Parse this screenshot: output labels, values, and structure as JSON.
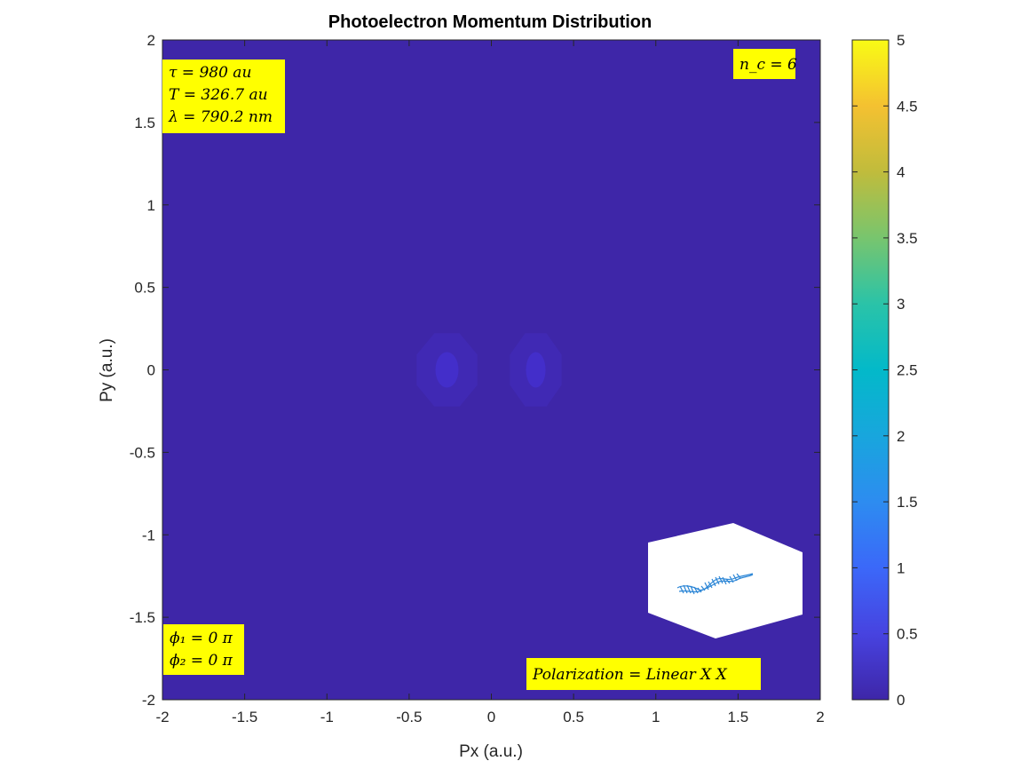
{
  "chart_data": {
    "type": "heatmap",
    "title": "Photoelectron Momentum Distribution",
    "xlabel": "Px (a.u.)",
    "ylabel": "Py (a.u.)",
    "xlim": [
      -2,
      2
    ],
    "ylim": [
      -2,
      2
    ],
    "x_ticks": [
      "-2",
      "-1.5",
      "-1",
      "-0.5",
      "0",
      "0.5",
      "1",
      "1.5",
      "2"
    ],
    "y_ticks": [
      "-2",
      "-1.5",
      "-1",
      "-0.5",
      "0",
      "0.5",
      "1",
      "1.5",
      "2"
    ],
    "colorbar": {
      "colormap": "parula",
      "clim": [
        0,
        5
      ],
      "ticks": [
        "0",
        "0.5",
        "1",
        "1.5",
        "2",
        "2.5",
        "3",
        "3.5",
        "4",
        "4.5",
        "5"
      ]
    },
    "background_value": 0,
    "features": [
      {
        "center": [
          -0.27,
          0
        ],
        "rx": 0.2,
        "ry": 0.24,
        "value": 0.08,
        "core_value": 0.18
      },
      {
        "center": [
          0.27,
          0
        ],
        "rx": 0.17,
        "ry": 0.24,
        "value": 0.08,
        "core_value": 0.18
      }
    ],
    "annotations": {
      "params_lines": [
        "τ = 980 au",
        "T = 326.7 au",
        "λ = 790.2 nm"
      ],
      "nc": "n_c = 6",
      "phases": [
        "ϕ₁ = 0 π",
        "ϕ₂ = 0 π"
      ],
      "polarization": "Polarization = Linear X X"
    },
    "colors": {
      "background": "#3e26a8",
      "annotation_box": "#ffff00",
      "inset_curve": "#2c86d6"
    }
  }
}
